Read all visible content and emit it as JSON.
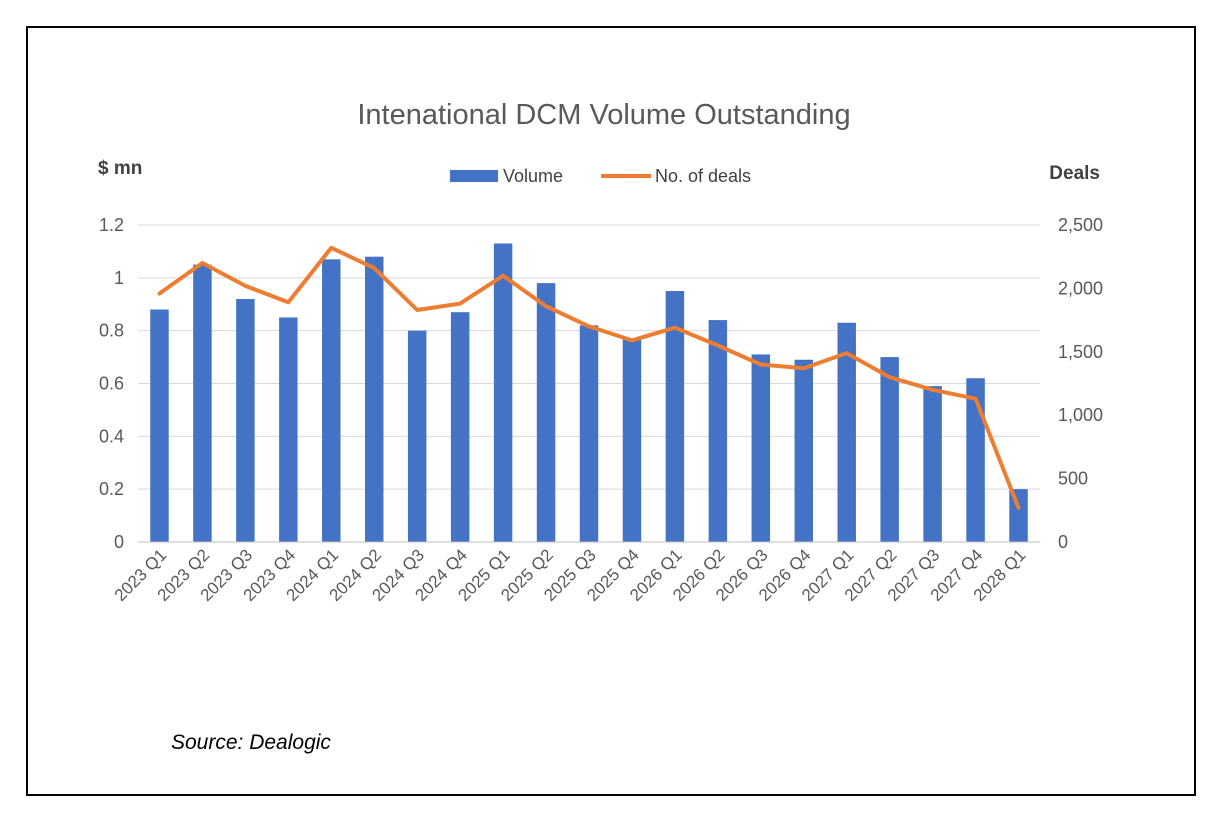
{
  "source": "Source: Dealogic",
  "chart_data": {
    "type": "bar+line",
    "title": "Intenational DCM Volume Outstanding",
    "ylabel_left": "$ mn",
    "ylabel_right": "Deals",
    "legend": {
      "placement": "top-center",
      "items": [
        "Volume",
        "No. of deals"
      ]
    },
    "grid": true,
    "categories": [
      "2023 Q1",
      "2023 Q2",
      "2023 Q3",
      "2023 Q4",
      "2024 Q1",
      "2024 Q2",
      "2024 Q3",
      "2024 Q4",
      "2025 Q1",
      "2025 Q2",
      "2025 Q3",
      "2025 Q4",
      "2026 Q1",
      "2026 Q2",
      "2026 Q3",
      "2026 Q4",
      "2027 Q1",
      "2027 Q2",
      "2027 Q3",
      "2027 Q4",
      "2028 Q1"
    ],
    "y_left": {
      "min": 0,
      "max": 1.2,
      "ticks": [
        0,
        0.2,
        0.4,
        0.6,
        0.8,
        1,
        1.2
      ],
      "tick_labels": [
        "0",
        "0.2",
        "0.4",
        "0.6",
        "0.8",
        "1",
        "1.2"
      ]
    },
    "y_right": {
      "min": 0,
      "max": 2500,
      "ticks": [
        0,
        500,
        1000,
        1500,
        2000,
        2500
      ],
      "tick_labels": [
        "0",
        "500",
        "1,000",
        "1,500",
        "2,000",
        "2,500"
      ]
    },
    "series": [
      {
        "name": "Volume",
        "type": "bar",
        "axis": "left",
        "color": "#4472C4",
        "values": [
          0.88,
          1.05,
          0.92,
          0.85,
          1.07,
          1.08,
          0.8,
          0.87,
          1.13,
          0.98,
          0.82,
          0.77,
          0.95,
          0.84,
          0.71,
          0.69,
          0.83,
          0.7,
          0.59,
          0.62,
          0.2
        ]
      },
      {
        "name": "No. of deals",
        "type": "line",
        "axis": "right",
        "color": "#ED7D31",
        "values": [
          1960,
          2200,
          2020,
          1890,
          2320,
          2160,
          1830,
          1880,
          2100,
          1860,
          1700,
          1590,
          1690,
          1550,
          1400,
          1370,
          1490,
          1300,
          1200,
          1130,
          270
        ]
      }
    ]
  }
}
